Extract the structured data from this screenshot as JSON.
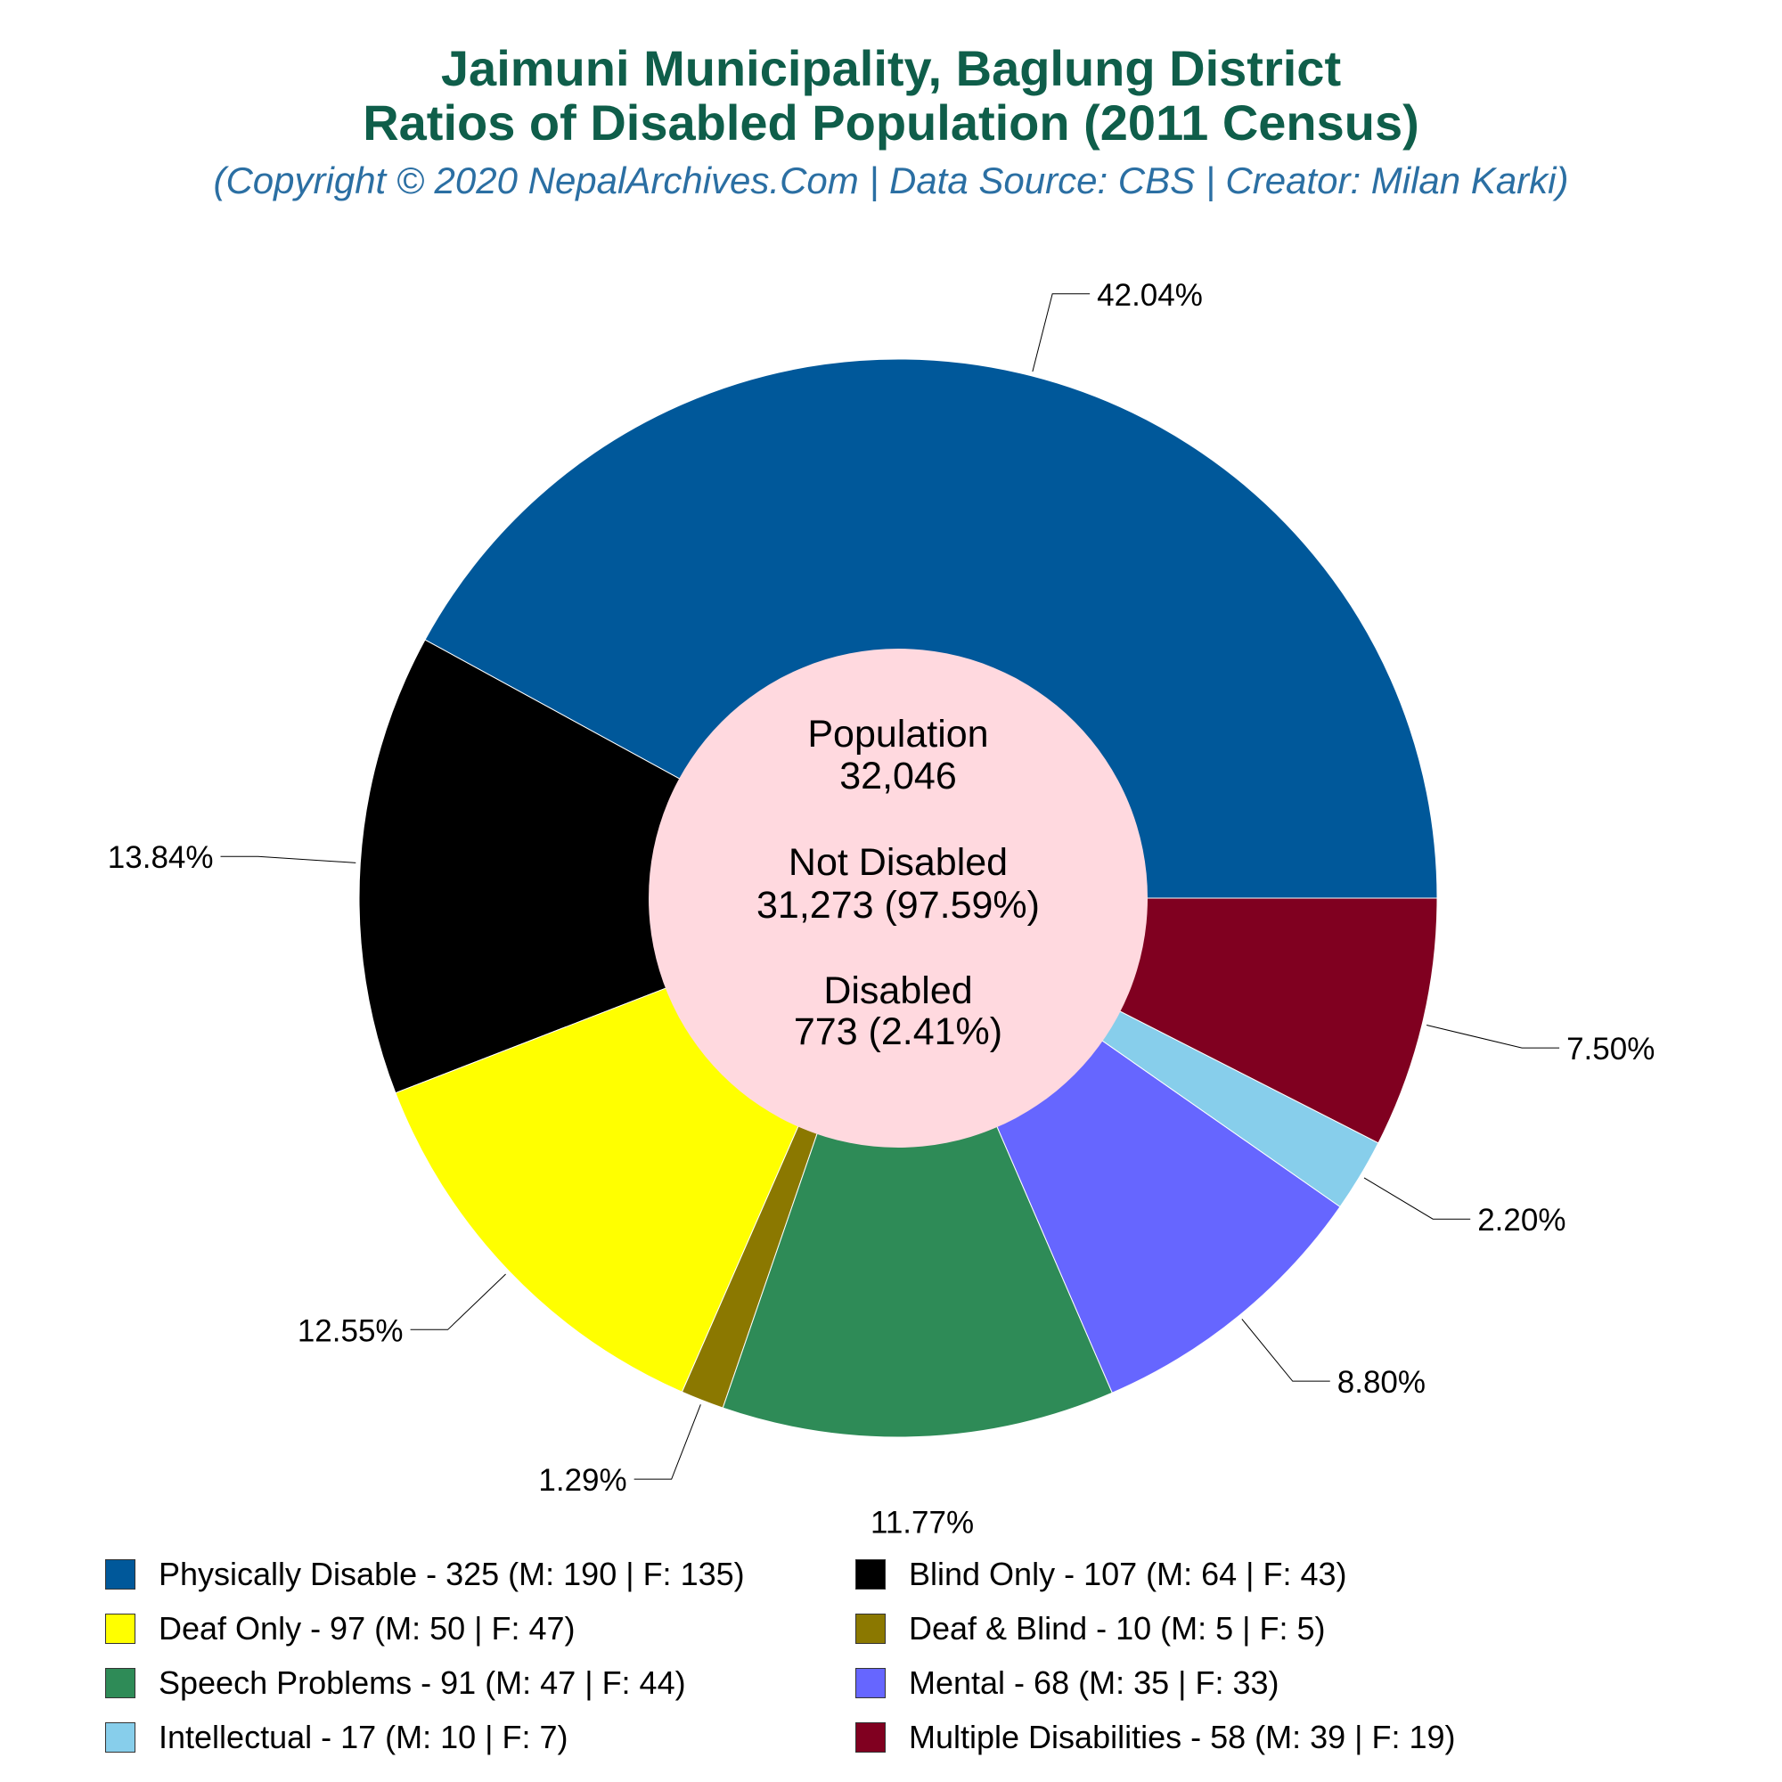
{
  "title_line1": "Jaimuni Municipality, Baglung District",
  "title_line2": "Ratios of Disabled Population (2011 Census)",
  "subtitle": "(Copyright © 2020 NepalArchives.Com | Data Source: CBS | Creator: Milan Karki)",
  "center": {
    "population_label": "Population",
    "population_value": "32,046",
    "not_disabled_label": "Not Disabled",
    "not_disabled_value": "31,273 (97.59%)",
    "disabled_label": "Disabled",
    "disabled_value": "773 (2.41%)"
  },
  "chart_data": {
    "type": "pie",
    "title": "Jaimuni Municipality, Baglung District Ratios of Disabled Population (2011 Census)",
    "donut_hole": true,
    "categories": [
      "Physically Disable",
      "Blind Only",
      "Deaf Only",
      "Deaf & Blind",
      "Speech Problems",
      "Mental",
      "Intellectual",
      "Multiple Disabilities"
    ],
    "values": [
      325,
      107,
      97,
      10,
      91,
      68,
      17,
      58
    ],
    "percent_labels": [
      "42.04%",
      "13.84%",
      "12.55%",
      "1.29%",
      "11.77%",
      "8.80%",
      "2.20%",
      "7.50%"
    ],
    "colors": [
      "#00589a",
      "#000000",
      "#ffff00",
      "#8b7800",
      "#2e8b57",
      "#6666ff",
      "#87ceeb",
      "#800020"
    ],
    "legend": [
      "Physically Disable - 325 (M: 190 | F: 135)",
      "Blind Only - 107 (M: 64 | F: 43)",
      "Deaf Only - 97 (M: 50 | F: 47)",
      "Deaf & Blind - 10 (M: 5 | F: 5)",
      "Speech Problems - 91 (M: 47 | F: 44)",
      "Mental - 68 (M: 35 | F: 33)",
      "Intellectual - 17 (M: 10 | F: 7)",
      "Multiple Disabilities - 58 (M: 39 | F: 19)"
    ],
    "legend_placement": "bottom",
    "center_color": "#ffd9df"
  }
}
